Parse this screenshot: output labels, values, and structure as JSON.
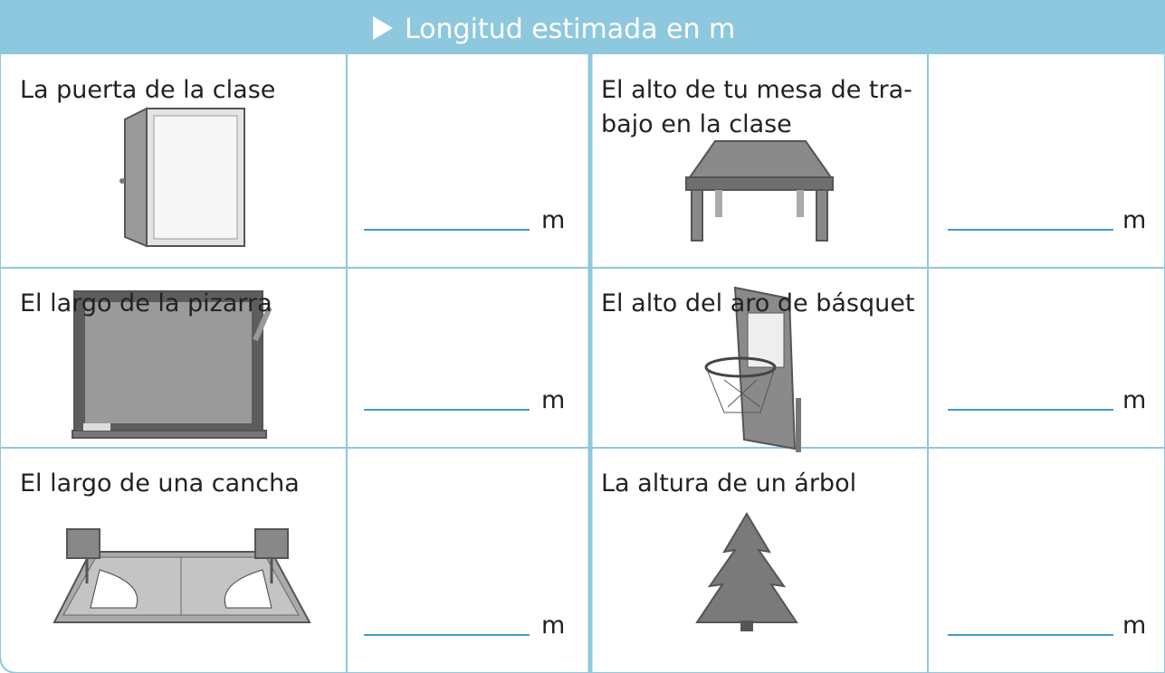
{
  "header": {
    "title": "Longitud estimada en m"
  },
  "table": {
    "rows": [
      [
        {
          "label": [
            "La puerta de la clase"
          ],
          "unit": "m"
        },
        {
          "label": [
            "El alto de tu mesa de tra-",
            "bajo en la clase"
          ],
          "unit": "m"
        }
      ],
      [
        {
          "label": [
            "El largo de la pizarra"
          ],
          "unit": "m"
        },
        {
          "label": [
            "El alto del aro de básquet"
          ],
          "unit": "m"
        }
      ],
      [
        {
          "label": [
            "El largo de una cancha"
          ],
          "unit": "m"
        },
        {
          "label": [
            "La altura de un árbol"
          ],
          "unit": "m"
        }
      ]
    ]
  }
}
